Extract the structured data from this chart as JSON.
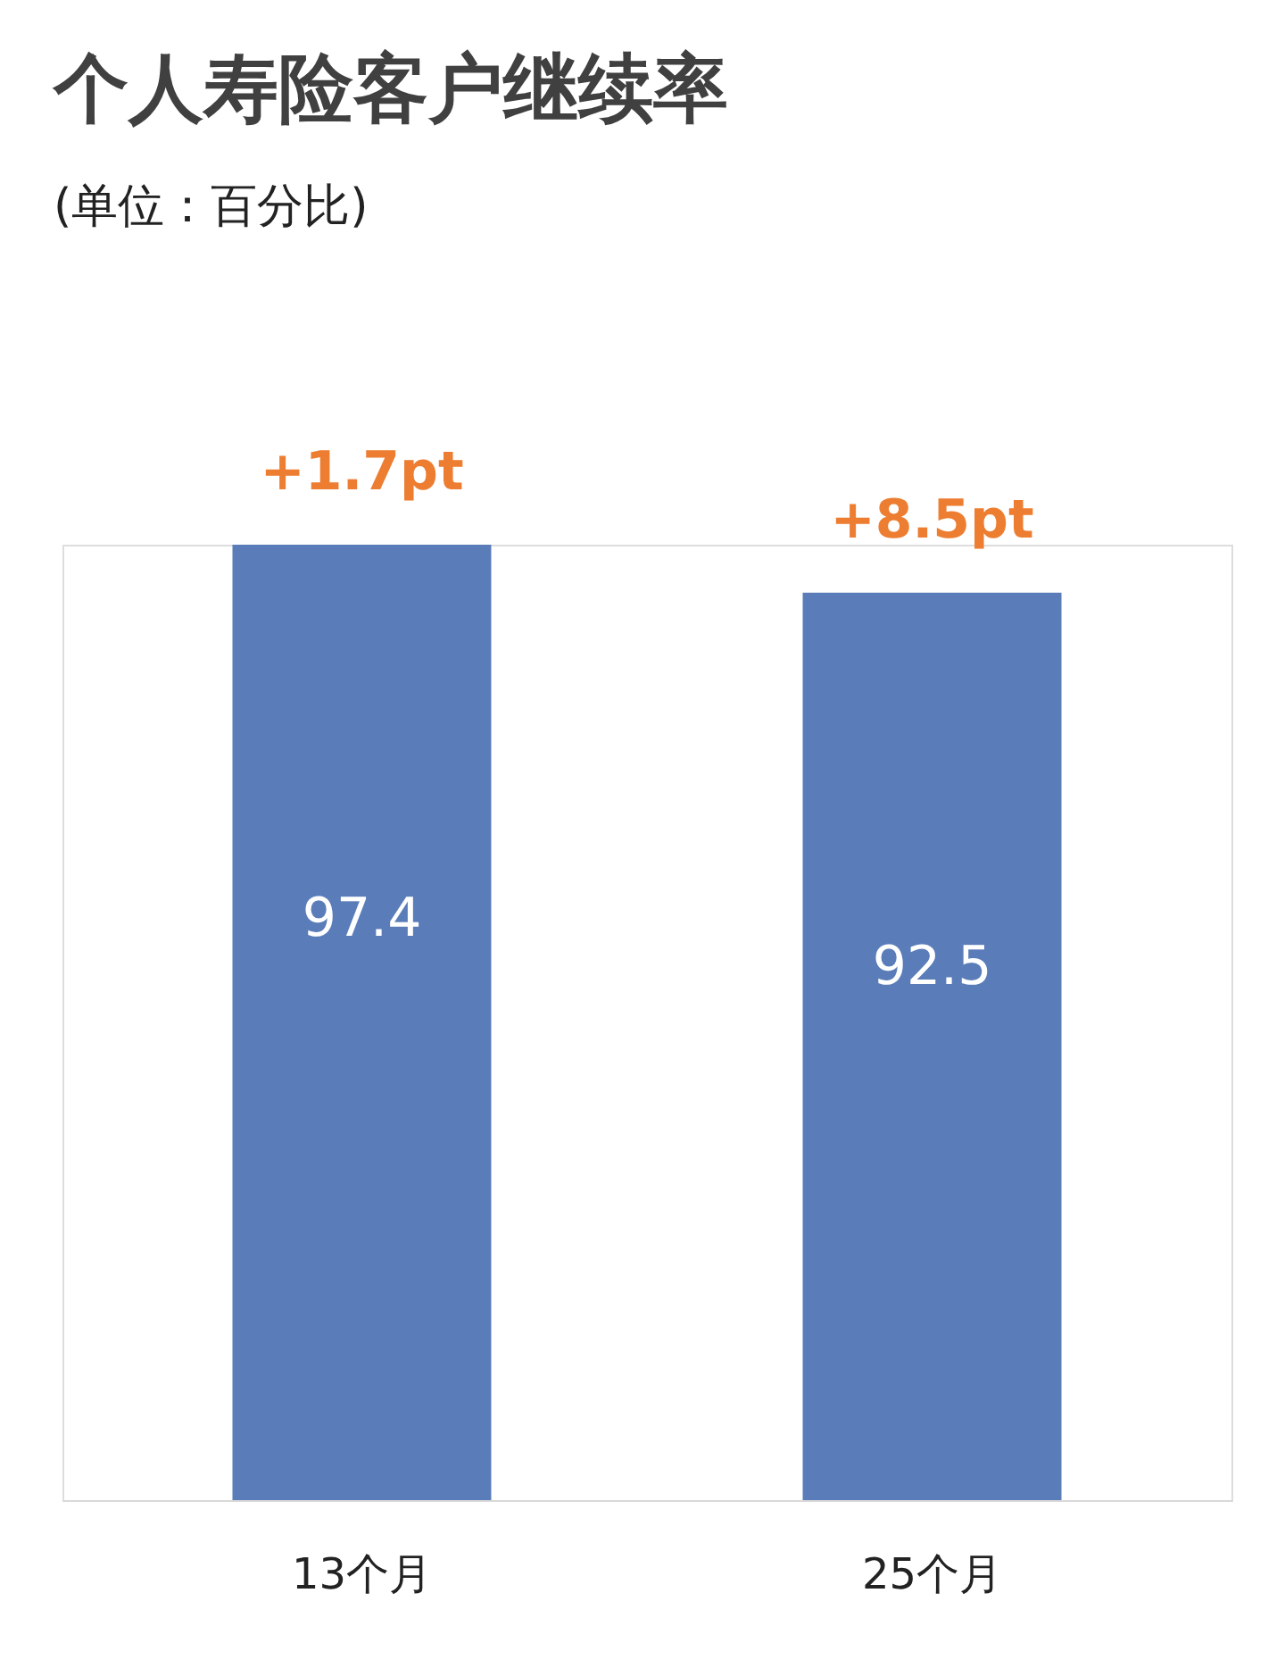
{
  "chart_data": {
    "type": "bar",
    "title": "个人寿险客户继续率",
    "subtitle": "(单位：百分比)",
    "categories": [
      "13个月",
      "25个月"
    ],
    "values": [
      97.4,
      92.5
    ],
    "color": "#5a7db9",
    "data_labels": true,
    "annotations": [
      {
        "text": "+1.7pt",
        "x": "13个月",
        "y": 97.4
      },
      {
        "text": "+8.5pt",
        "x": "25个月",
        "y": 92.5
      }
    ]
  }
}
